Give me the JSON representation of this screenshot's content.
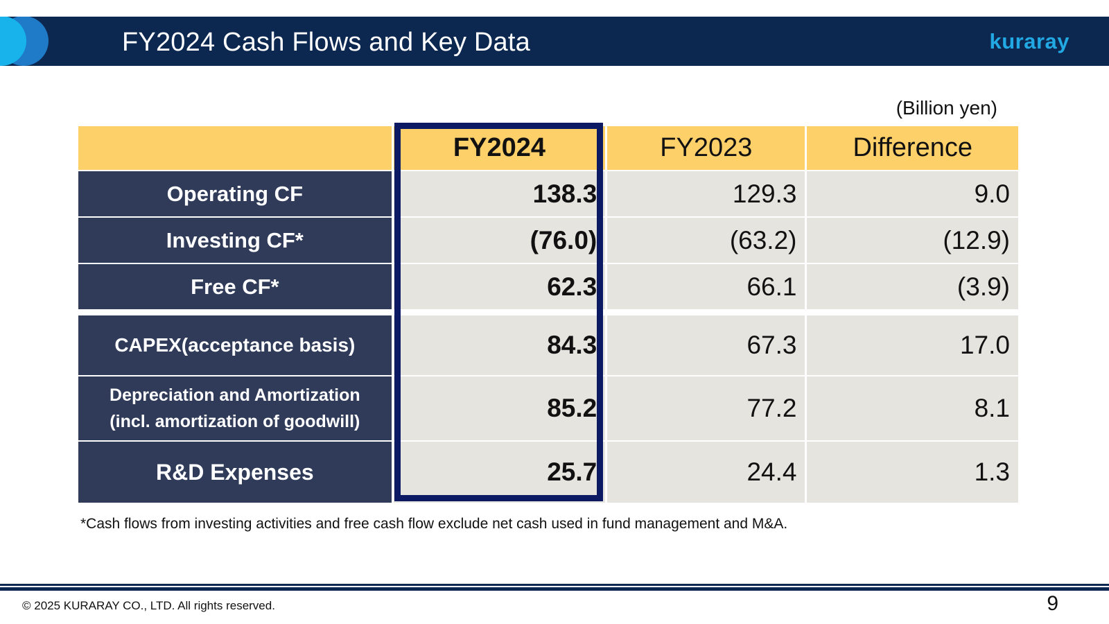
{
  "header": {
    "title": "FY2024 Cash Flows and Key Data",
    "logo": "kuraray",
    "colors": {
      "bar": "#0c2850",
      "accent": "#22a9e3"
    }
  },
  "unit_label": "(Billion yen)",
  "table": {
    "columns": [
      "FY2024",
      "FY2023",
      "Difference"
    ],
    "rows": [
      {
        "label": "Operating CF",
        "values": [
          "138.3",
          "129.3",
          "9.0"
        ]
      },
      {
        "label": "Investing CF*",
        "values": [
          "(76.0)",
          "(63.2)",
          "(12.9)"
        ]
      },
      {
        "label": "Free CF*",
        "values": [
          "62.3",
          "66.1",
          "(3.9)"
        ]
      },
      {
        "label": "CAPEX(acceptance basis)",
        "values": [
          "84.3",
          "67.3",
          "17.0"
        ]
      },
      {
        "label_line1": "Depreciation and Amortization",
        "label_line2": "(incl. amortization of goodwill)",
        "values": [
          "85.2",
          "77.2",
          "8.1"
        ]
      },
      {
        "label": "R&D Expenses",
        "values": [
          "25.7",
          "24.4",
          "1.3"
        ]
      }
    ],
    "colors": {
      "header": "#fdd06a",
      "label_bg": "#303b5a",
      "value_bg": "#e6e4df",
      "highlight_border": "#0c1a64"
    }
  },
  "footnote": "*Cash flows from investing activities and free cash flow exclude net cash used in fund management and M&A.",
  "footer": {
    "copyright": "© 2025 KURARAY CO., LTD. All rights reserved.",
    "page_number": "9"
  }
}
